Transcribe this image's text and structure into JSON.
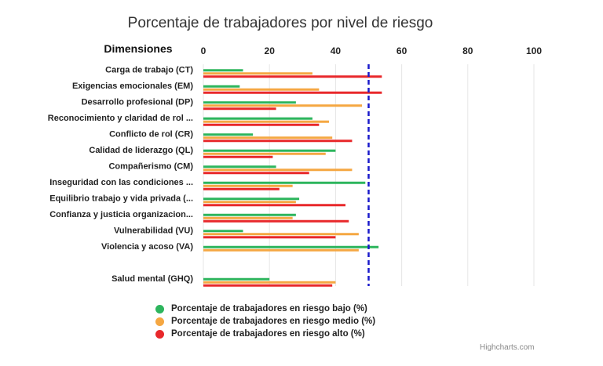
{
  "chart_data": {
    "type": "bar",
    "orientation": "horizontal",
    "title": "Porcentaje de trabajadores por nivel de riesgo",
    "category_axis_title": "Dimensiones",
    "categories": [
      "Carga de trabajo (CT)",
      "Exigencias emocionales (EM)",
      "Desarrollo profesional (DP)",
      "Reconocimiento y claridad de rol ...",
      "Conflicto de rol (CR)",
      "Calidad de liderazgo (QL)",
      "Compañerismo (CM)",
      "Inseguridad con las condiciones ...",
      "Equilibrio trabajo y vida privada (...",
      "Confianza y justicia organizacion...",
      "Vulnerabilidad (VU)",
      "Violencia y acoso (VA)",
      "",
      "Salud mental (GHQ)"
    ],
    "series": [
      {
        "name": "Porcentaje de trabajadores en riesgo bajo (%)",
        "color": "#2db55d",
        "values": [
          12,
          11,
          28,
          33,
          15,
          40,
          22,
          49,
          29,
          28,
          12,
          53,
          null,
          20
        ]
      },
      {
        "name": "Porcentaje de trabajadores en riesgo medio (%)",
        "color": "#f5a742",
        "values": [
          33,
          35,
          48,
          38,
          39,
          37,
          45,
          27,
          28,
          27,
          47,
          47,
          null,
          40
        ]
      },
      {
        "name": "Porcentaje de trabajadores en riesgo alto (%)",
        "color": "#e8282b",
        "values": [
          54,
          54,
          22,
          35,
          45,
          21,
          32,
          23,
          43,
          44,
          40,
          0,
          null,
          39
        ]
      }
    ],
    "value_axis": {
      "min": 0,
      "max": 100,
      "ticks": [
        0,
        20,
        40,
        60,
        80,
        100
      ],
      "position": "top"
    },
    "reference_line": {
      "value": 50,
      "color": "#1a1acc",
      "style": "dashed"
    },
    "grid": true,
    "legend": "bottom"
  },
  "credits": "Highcharts.com"
}
